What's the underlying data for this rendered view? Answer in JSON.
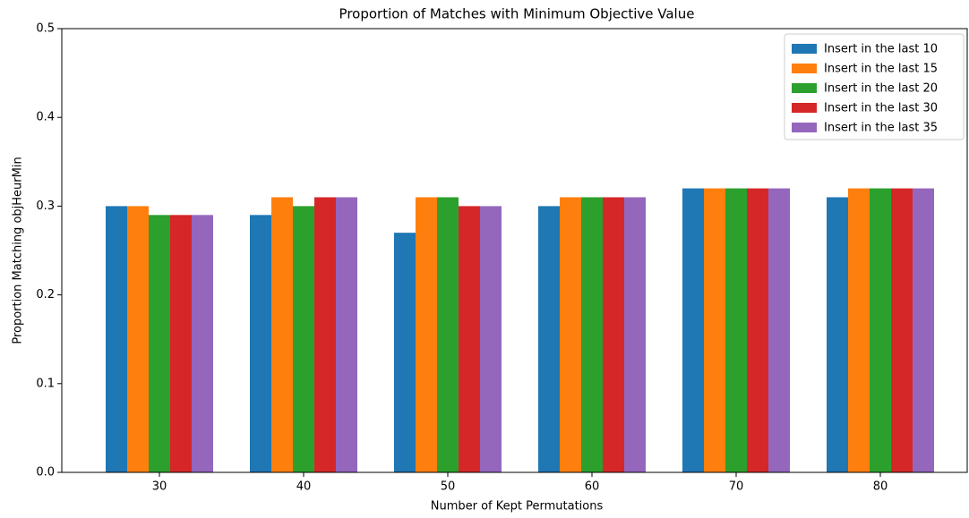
{
  "chart_data": {
    "type": "bar",
    "title": "Proportion of Matches with Minimum Objective Value",
    "x_label": "Number of Kept Permutations",
    "y_label": "Proportion Matching objHeurMin",
    "categories": [
      "30",
      "40",
      "50",
      "60",
      "70",
      "80"
    ],
    "series": [
      {
        "name": "Insert in the last 10",
        "color": "#1f77b4",
        "values": [
          0.3,
          0.29,
          0.27,
          0.3,
          0.32,
          0.31
        ]
      },
      {
        "name": "Insert in the last 15",
        "color": "#ff7f0e",
        "values": [
          0.3,
          0.31,
          0.31,
          0.31,
          0.32,
          0.32
        ]
      },
      {
        "name": "Insert in the last 20",
        "color": "#2ca02c",
        "values": [
          0.29,
          0.3,
          0.31,
          0.31,
          0.32,
          0.32
        ]
      },
      {
        "name": "Insert in the last 30",
        "color": "#d62728",
        "values": [
          0.29,
          0.31,
          0.3,
          0.31,
          0.32,
          0.32
        ]
      },
      {
        "name": "Insert in the last 35",
        "color": "#9467bd",
        "values": [
          0.29,
          0.31,
          0.3,
          0.31,
          0.32,
          0.32
        ]
      }
    ],
    "ylim": [
      0,
      0.5
    ],
    "yticks": [
      {
        "value": 0,
        "label": "0.0"
      },
      0.1,
      0.2,
      0.3,
      0.4,
      0.5
    ],
    "legend": "upper right"
  }
}
